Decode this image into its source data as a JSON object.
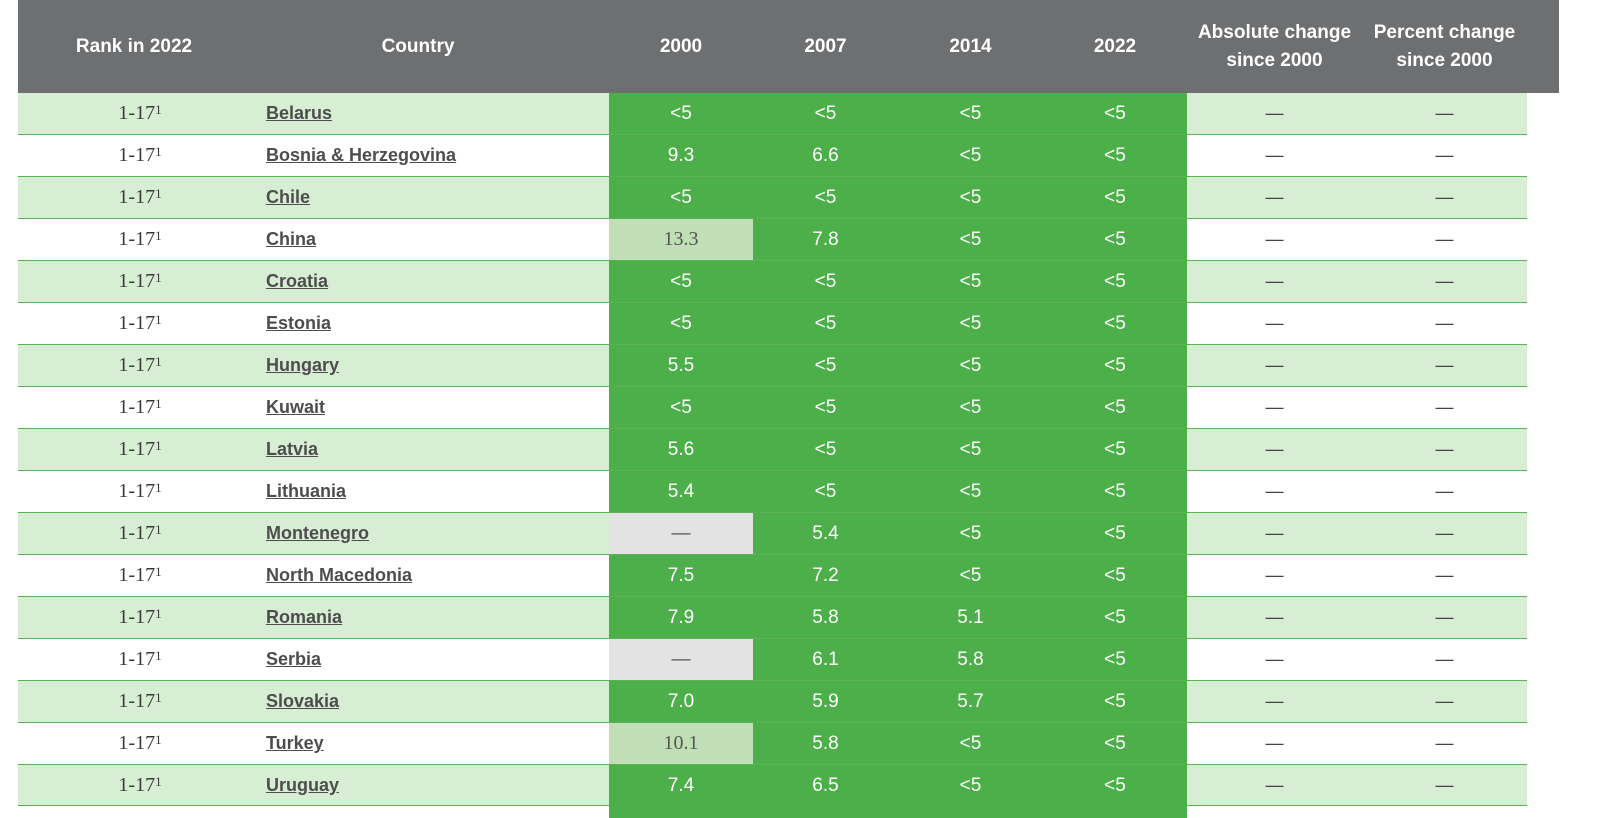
{
  "headers": {
    "rank": "Rank in 2022",
    "country": "Country",
    "y2000": "2000",
    "y2007": "2007",
    "y2014": "2014",
    "y2022": "2022",
    "abs_change": "Absolute change\nsince 2000",
    "pct_change": "Percent change\nsince 2000"
  },
  "colors": {
    "header_bg": "#6e6f70",
    "value_green": "#4daf4a",
    "value_light": "#c1dfb6",
    "value_missing": "#e3e3e3",
    "row_shade": "#d8eed4"
  },
  "rows": [
    {
      "rank": "1-17",
      "footnote": "1",
      "country": "Belarus",
      "v2000": "<5",
      "v2007": "<5",
      "v2014": "<5",
      "v2022": "<5",
      "abs": "—",
      "pct": "—"
    },
    {
      "rank": "1-17",
      "footnote": "1",
      "country": "Bosnia & Herzegovina",
      "v2000": "9.3",
      "v2007": "6.6",
      "v2014": "<5",
      "v2022": "<5",
      "abs": "—",
      "pct": "—"
    },
    {
      "rank": "1-17",
      "footnote": "1",
      "country": "Chile",
      "v2000": "<5",
      "v2007": "<5",
      "v2014": "<5",
      "v2022": "<5",
      "abs": "—",
      "pct": "—"
    },
    {
      "rank": "1-17",
      "footnote": "1",
      "country": "China",
      "v2000": "13.3",
      "v2007": "7.8",
      "v2014": "<5",
      "v2022": "<5",
      "abs": "—",
      "pct": "—"
    },
    {
      "rank": "1-17",
      "footnote": "1",
      "country": "Croatia",
      "v2000": "<5",
      "v2007": "<5",
      "v2014": "<5",
      "v2022": "<5",
      "abs": "—",
      "pct": "—"
    },
    {
      "rank": "1-17",
      "footnote": "1",
      "country": "Estonia",
      "v2000": "<5",
      "v2007": "<5",
      "v2014": "<5",
      "v2022": "<5",
      "abs": "—",
      "pct": "—"
    },
    {
      "rank": "1-17",
      "footnote": "1",
      "country": "Hungary",
      "v2000": "5.5",
      "v2007": "<5",
      "v2014": "<5",
      "v2022": "<5",
      "abs": "—",
      "pct": "—"
    },
    {
      "rank": "1-17",
      "footnote": "1",
      "country": "Kuwait",
      "v2000": "<5",
      "v2007": "<5",
      "v2014": "<5",
      "v2022": "<5",
      "abs": "—",
      "pct": "—"
    },
    {
      "rank": "1-17",
      "footnote": "1",
      "country": "Latvia",
      "v2000": "5.6",
      "v2007": "<5",
      "v2014": "<5",
      "v2022": "<5",
      "abs": "—",
      "pct": "—"
    },
    {
      "rank": "1-17",
      "footnote": "1",
      "country": "Lithuania",
      "v2000": "5.4",
      "v2007": "<5",
      "v2014": "<5",
      "v2022": "<5",
      "abs": "—",
      "pct": "—"
    },
    {
      "rank": "1-17",
      "footnote": "1",
      "country": "Montenegro",
      "v2000": "—",
      "v2007": "5.4",
      "v2014": "<5",
      "v2022": "<5",
      "abs": "—",
      "pct": "—"
    },
    {
      "rank": "1-17",
      "footnote": "1",
      "country": "North Macedonia",
      "v2000": "7.5",
      "v2007": "7.2",
      "v2014": "<5",
      "v2022": "<5",
      "abs": "—",
      "pct": "—"
    },
    {
      "rank": "1-17",
      "footnote": "1",
      "country": "Romania",
      "v2000": "7.9",
      "v2007": "5.8",
      "v2014": "5.1",
      "v2022": "<5",
      "abs": "—",
      "pct": "—"
    },
    {
      "rank": "1-17",
      "footnote": "1",
      "country": "Serbia",
      "v2000": "—",
      "v2007": "6.1",
      "v2014": "5.8",
      "v2022": "<5",
      "abs": "—",
      "pct": "—"
    },
    {
      "rank": "1-17",
      "footnote": "1",
      "country": "Slovakia",
      "v2000": "7.0",
      "v2007": "5.9",
      "v2014": "5.7",
      "v2022": "<5",
      "abs": "—",
      "pct": "—"
    },
    {
      "rank": "1-17",
      "footnote": "1",
      "country": "Turkey",
      "v2000": "10.1",
      "v2007": "5.8",
      "v2014": "<5",
      "v2022": "<5",
      "abs": "—",
      "pct": "—"
    },
    {
      "rank": "1-17",
      "footnote": "1",
      "country": "Uruguay",
      "v2000": "7.4",
      "v2007": "6.5",
      "v2014": "<5",
      "v2022": "<5",
      "abs": "—",
      "pct": "—"
    }
  ]
}
